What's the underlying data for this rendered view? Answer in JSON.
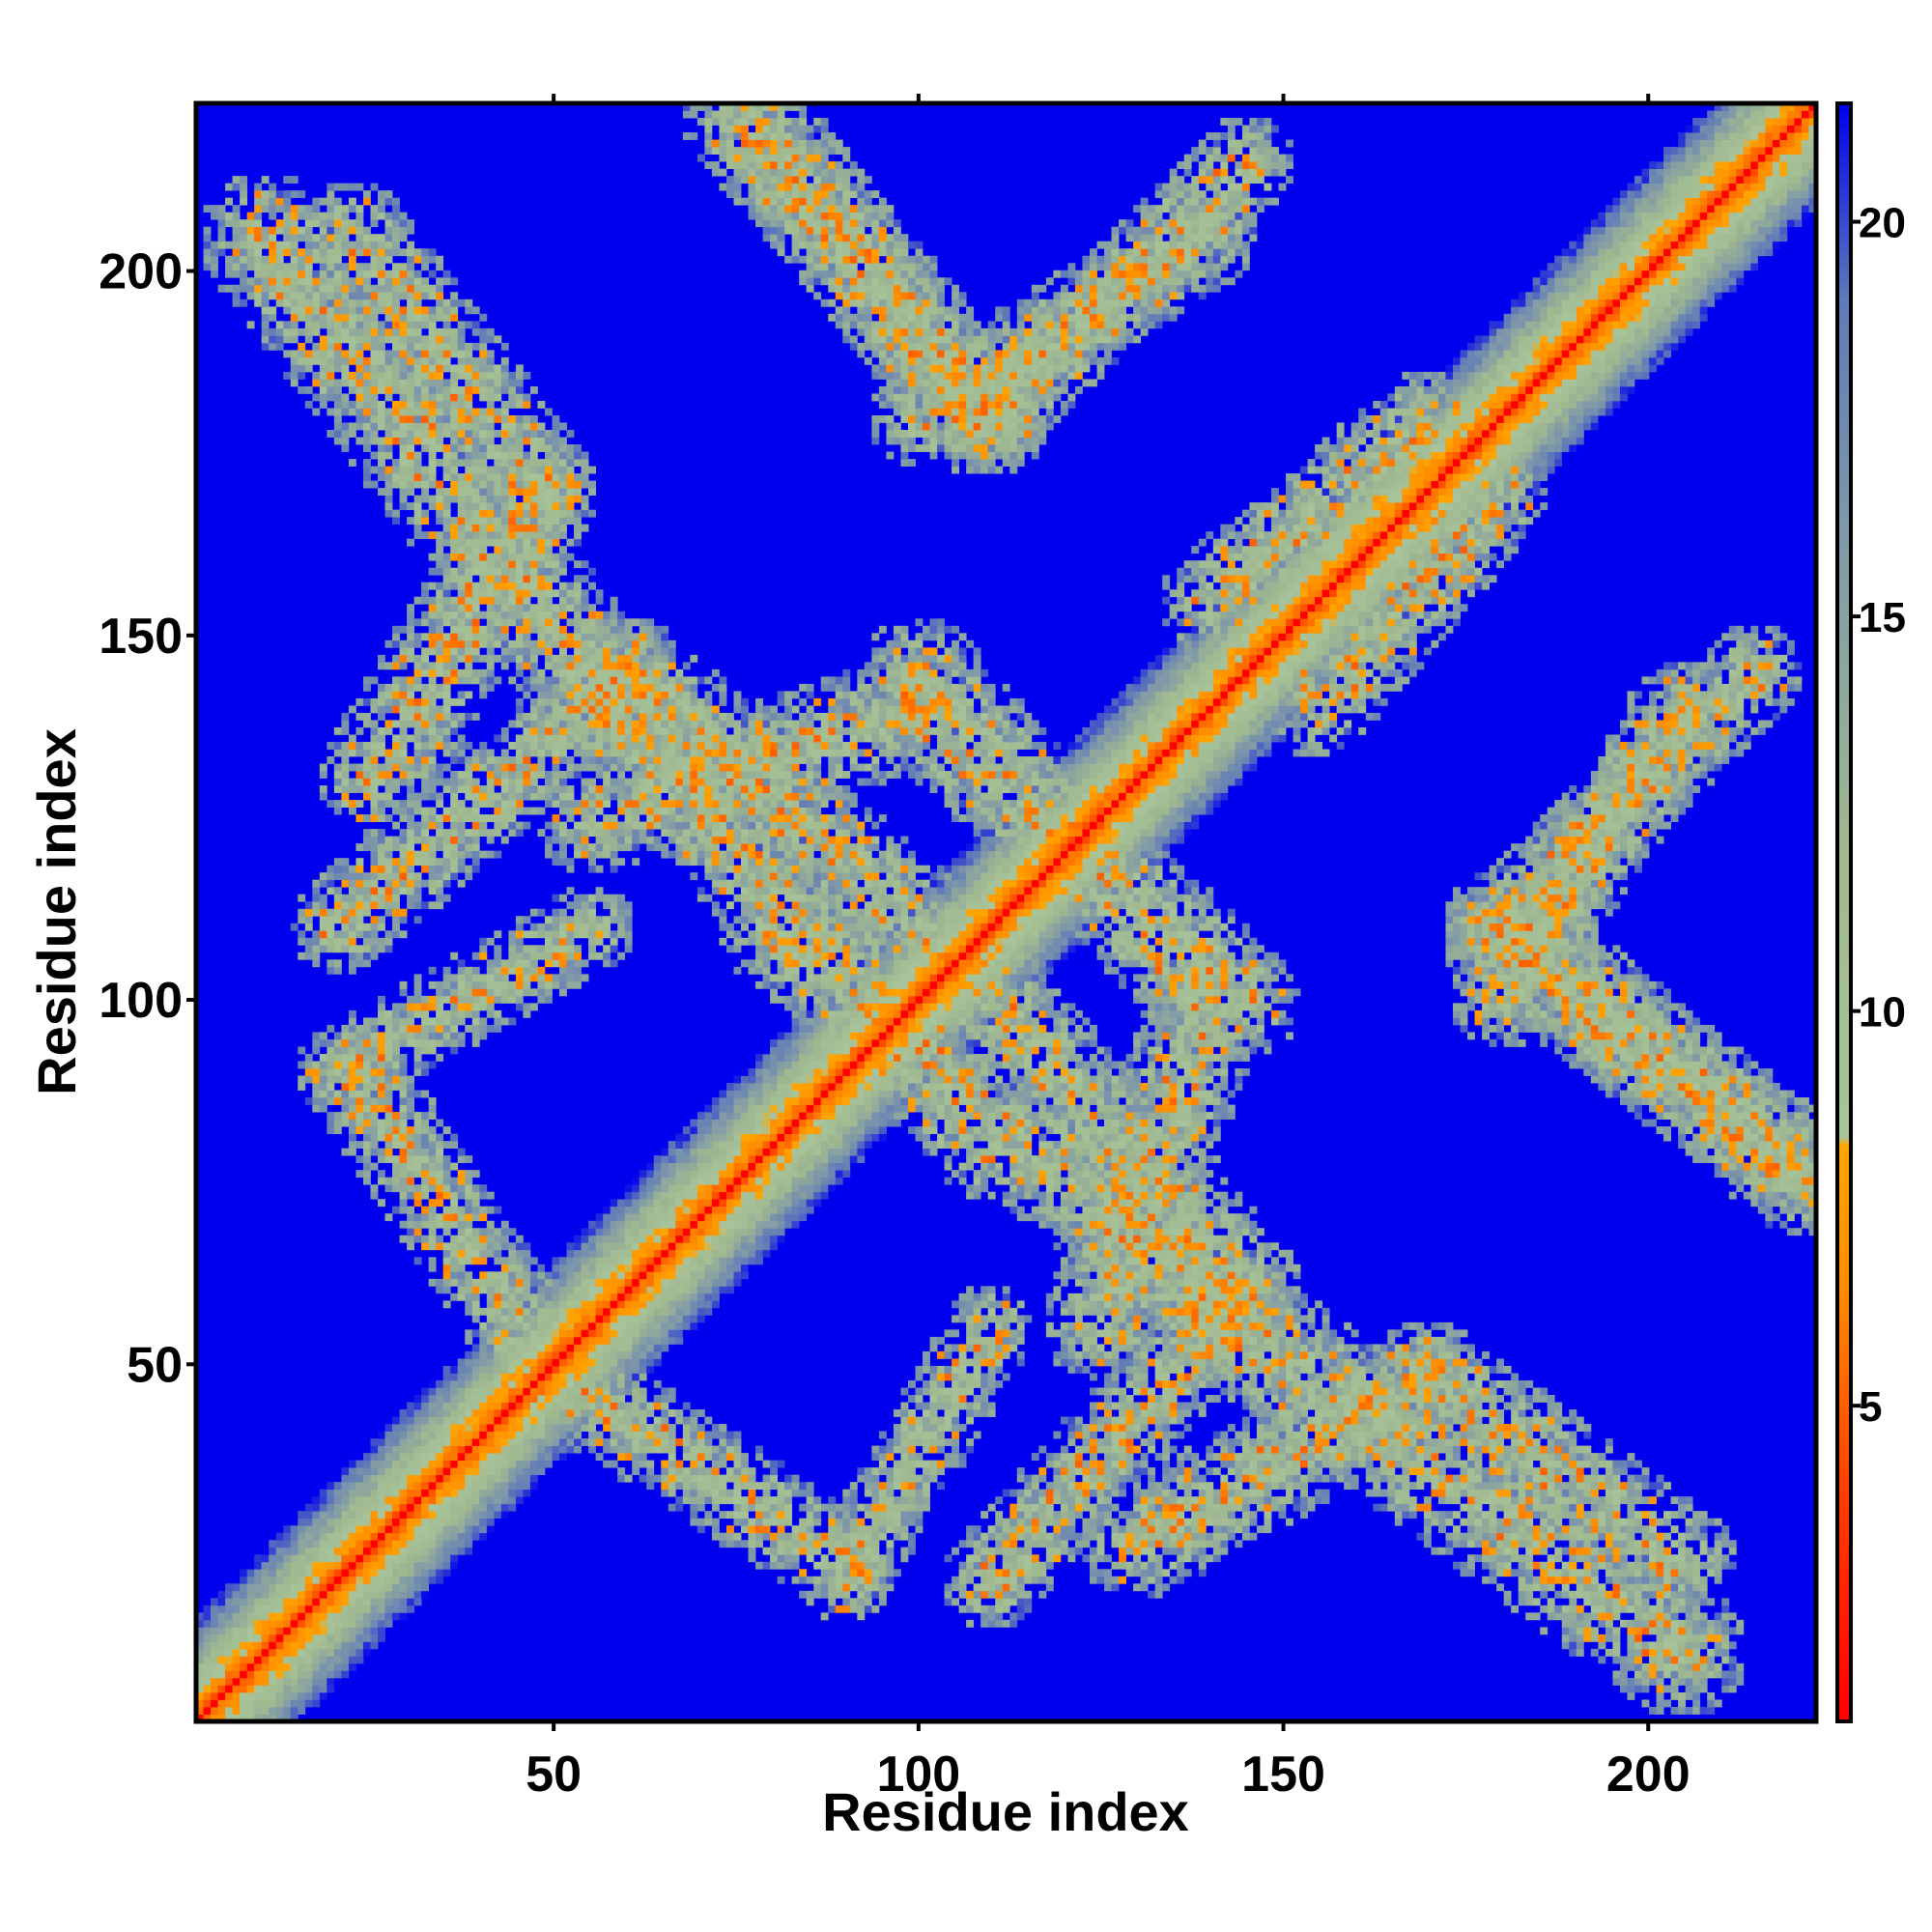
{
  "chart_data": {
    "type": "heatmap",
    "title": "",
    "xlabel": "Residue index",
    "ylabel": "Residue index",
    "n_residues": 223,
    "xlim": [
      1,
      223
    ],
    "ylim": [
      1,
      223
    ],
    "x_ticks": [
      50,
      100,
      150,
      200
    ],
    "y_ticks": [
      50,
      100,
      150,
      200
    ],
    "colorbar": {
      "range": [
        1,
        21.5
      ],
      "ticks": [
        5,
        10,
        15,
        20
      ],
      "stops": [
        {
          "value": 1,
          "color": "#ff0000"
        },
        {
          "value": 4,
          "color": "#ff4000"
        },
        {
          "value": 6.5,
          "color": "#ff8c00"
        },
        {
          "value": 8.3,
          "color": "#ffa500"
        },
        {
          "value": 8.4,
          "color": "#a8c49a"
        },
        {
          "value": 12,
          "color": "#a0b890"
        },
        {
          "value": 16,
          "color": "#8099a8"
        },
        {
          "value": 19,
          "color": "#607ab8"
        },
        {
          "value": 21.5,
          "color": "#0000ee"
        }
      ]
    },
    "background_value": 21.5,
    "colors": {
      "background": "#0000ee",
      "diagonal": "#ff0000"
    },
    "contact_bands": [
      {
        "from": [
          10,
          205
        ],
        "to": [
          58,
          140
        ],
        "width": 9
      },
      {
        "from": [
          58,
          140
        ],
        "to": [
          110,
          80
        ],
        "width": 8
      },
      {
        "from": [
          75,
          222
        ],
        "to": [
          110,
          180
        ],
        "width": 8
      },
      {
        "from": [
          110,
          180
        ],
        "to": [
          145,
          215
        ],
        "width": 7
      },
      {
        "from": [
          55,
          125
        ],
        "to": [
          100,
          140
        ],
        "width": 8
      },
      {
        "from": [
          100,
          140
        ],
        "to": [
          145,
          100
        ],
        "width": 8
      },
      {
        "from": [
          110,
          100
        ],
        "to": [
          145,
          60
        ],
        "width": 8
      },
      {
        "from": [
          145,
          60
        ],
        "to": [
          110,
          20
        ],
        "width": 7
      },
      {
        "from": [
          130,
          25
        ],
        "to": [
          170,
          48
        ],
        "width": 8
      },
      {
        "from": [
          170,
          48
        ],
        "to": [
          205,
          22
        ],
        "width": 8
      },
      {
        "from": [
          55,
          45
        ],
        "to": [
          90,
          22
        ],
        "width": 7
      },
      {
        "from": [
          180,
          108
        ],
        "to": [
          220,
          78
        ],
        "width": 8
      },
      {
        "from": [
          180,
          100
        ],
        "to": [
          205,
          140
        ],
        "width": 7
      },
      {
        "from": [
          155,
          140
        ],
        "to": [
          180,
          170
        ],
        "width": 7
      },
      {
        "from": [
          20,
          90
        ],
        "to": [
          55,
          110
        ],
        "width": 6
      }
    ]
  }
}
